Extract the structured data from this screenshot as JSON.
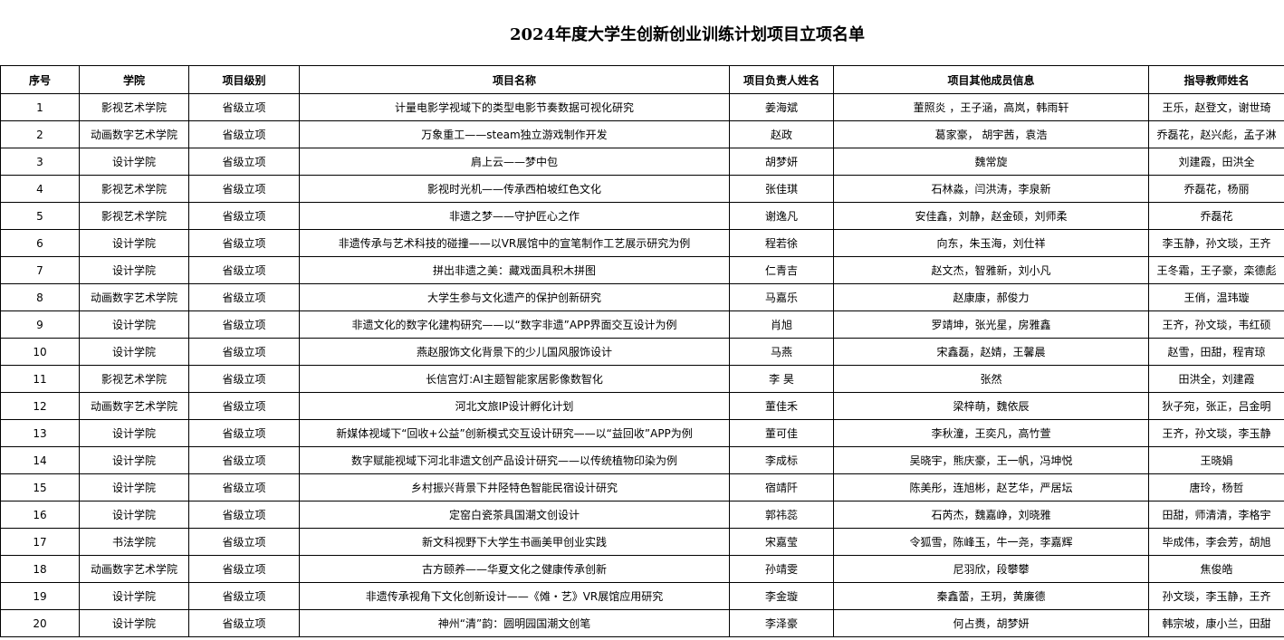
{
  "title": "2024年度大学生创新创业训练计划项目立项名单",
  "headers": [
    "序号",
    "学院",
    "项目级别",
    "项目名称",
    "项目负责人姓名",
    "项目其他成员信息",
    "指导教师姓名"
  ],
  "rows": [
    [
      "1",
      "影视艺术学院",
      "省级立项",
      "计量电影学视域下的类型电影节奏数据可视化研究",
      "姜海斌",
      "董照炎 ，王子涵，高岚，韩雨轩",
      "王乐，赵登文，谢世琦"
    ],
    [
      "2",
      "动画数字艺术学院",
      "省级立项",
      "万象重工——steam独立游戏制作开发",
      "赵政",
      "葛家豪， 胡宇茜，袁浩",
      "乔磊花，赵兴彪，孟子淋"
    ],
    [
      "3",
      "设计学院",
      "省级立项",
      "肩上云——梦中包",
      "胡梦妍",
      "魏常旋",
      "刘建霞，田洪全"
    ],
    [
      "4",
      "影视艺术学院",
      "省级立项",
      "影视时光机——传承西柏坡红色文化",
      "张佳琪",
      "石林淼，闫洪涛，李泉新",
      "乔磊花，杨丽"
    ],
    [
      "5",
      "影视艺术学院",
      "省级立项",
      "非遗之梦——守护匠心之作",
      "谢逸凡",
      "安佳鑫，刘静，赵金硕，刘师柔",
      "乔磊花"
    ],
    [
      "6",
      "设计学院",
      "省级立项",
      "非遗传承与艺术科技的碰撞——以VR展馆中的宣笔制作工艺展示研究为例",
      "程若徐",
      "向东，朱玉海，刘仕祥",
      "李玉静，孙文琰，王齐"
    ],
    [
      "7",
      "设计学院",
      "省级立项",
      "拼出非遗之美：藏戏面具积木拼图",
      "仁青吉",
      "赵文杰，智雅新，刘小凡",
      "王冬霜，王子豪，栾德彪"
    ],
    [
      "8",
      "动画数字艺术学院",
      "省级立项",
      "大学生参与文化遗产的保护创新研究",
      "马嘉乐",
      "赵康康，郝俊力",
      "王俏，温玮璇"
    ],
    [
      "9",
      "设计学院",
      "省级立项",
      "非遗文化的数字化建构研究——以“数字非遗”APP界面交互设计为例",
      "肖旭",
      "罗靖坤，张光星，房雅鑫",
      "王齐，孙文琰，韦红硕"
    ],
    [
      "10",
      "设计学院",
      "省级立项",
      "燕赵服饰文化背景下的少儿国风服饰设计",
      "马燕",
      "宋鑫磊，赵婧，王馨晨",
      "赵雪，田甜，程宵琼"
    ],
    [
      "11",
      "影视艺术学院",
      "省级立项",
      "长信宫灯:AI主题智能家居影像数智化",
      "李 昊",
      "张然",
      "田洪全，刘建霞"
    ],
    [
      "12",
      "动画数字艺术学院",
      "省级立项",
      "河北文旅IP设计孵化计划",
      "董佳禾",
      "梁梓萌，魏依辰",
      "狄子宛，张正，吕金明"
    ],
    [
      "13",
      "设计学院",
      "省级立项",
      "新媒体视域下“回收+公益”创新模式交互设计研究——以“益回收”APP为例",
      "董可佳",
      "李秋潼，王奕凡，高竹萱",
      "王齐，孙文琰，李玉静"
    ],
    [
      "14",
      "设计学院",
      "省级立项",
      "数字赋能视域下河北非遗文创产品设计研究——以传统植物印染为例",
      "李成标",
      "吴晓宇，熊庆豪，王一帆，冯坤悦",
      "王晓娟"
    ],
    [
      "15",
      "设计学院",
      "省级立项",
      "乡村振兴背景下井陉特色智能民宿设计研究",
      "宿靖阡",
      "陈美彤，连旭彬，赵艺华，严居坛",
      "唐玲，杨哲"
    ],
    [
      "16",
      "设计学院",
      "省级立项",
      "定窑白瓷茶具国潮文创设计",
      "郭祎蕊",
      "石芮杰，魏嘉峥，刘晓雅",
      "田甜，师清清，李格宇"
    ],
    [
      "17",
      "书法学院",
      "省级立项",
      "新文科视野下大学生书画美甲创业实践",
      "宋嘉莹",
      "令狐雪，陈峰玉，牛一尧，李嘉辉",
      "毕成伟，李会芳，胡旭"
    ],
    [
      "18",
      "动画数字艺术学院",
      "省级立项",
      "古方颐养——华夏文化之健康传承创新",
      "孙靖雯",
      "尼羽欣，段攀攀",
      "焦俊皓"
    ],
    [
      "19",
      "设计学院",
      "省级立项",
      "非遗传承视角下文化创新设计——《傩・艺》VR展馆应用研究",
      "李金璇",
      "秦鑫蕾，王玥，黄廉德",
      "孙文琰，李玉静，王齐"
    ],
    [
      "20",
      "设计学院",
      "省级立项",
      "神州“清”韵：圆明园国潮文创笔",
      "李泽豪",
      "何占赉，胡梦妍",
      "韩宗坡，康小兰，田甜"
    ]
  ]
}
